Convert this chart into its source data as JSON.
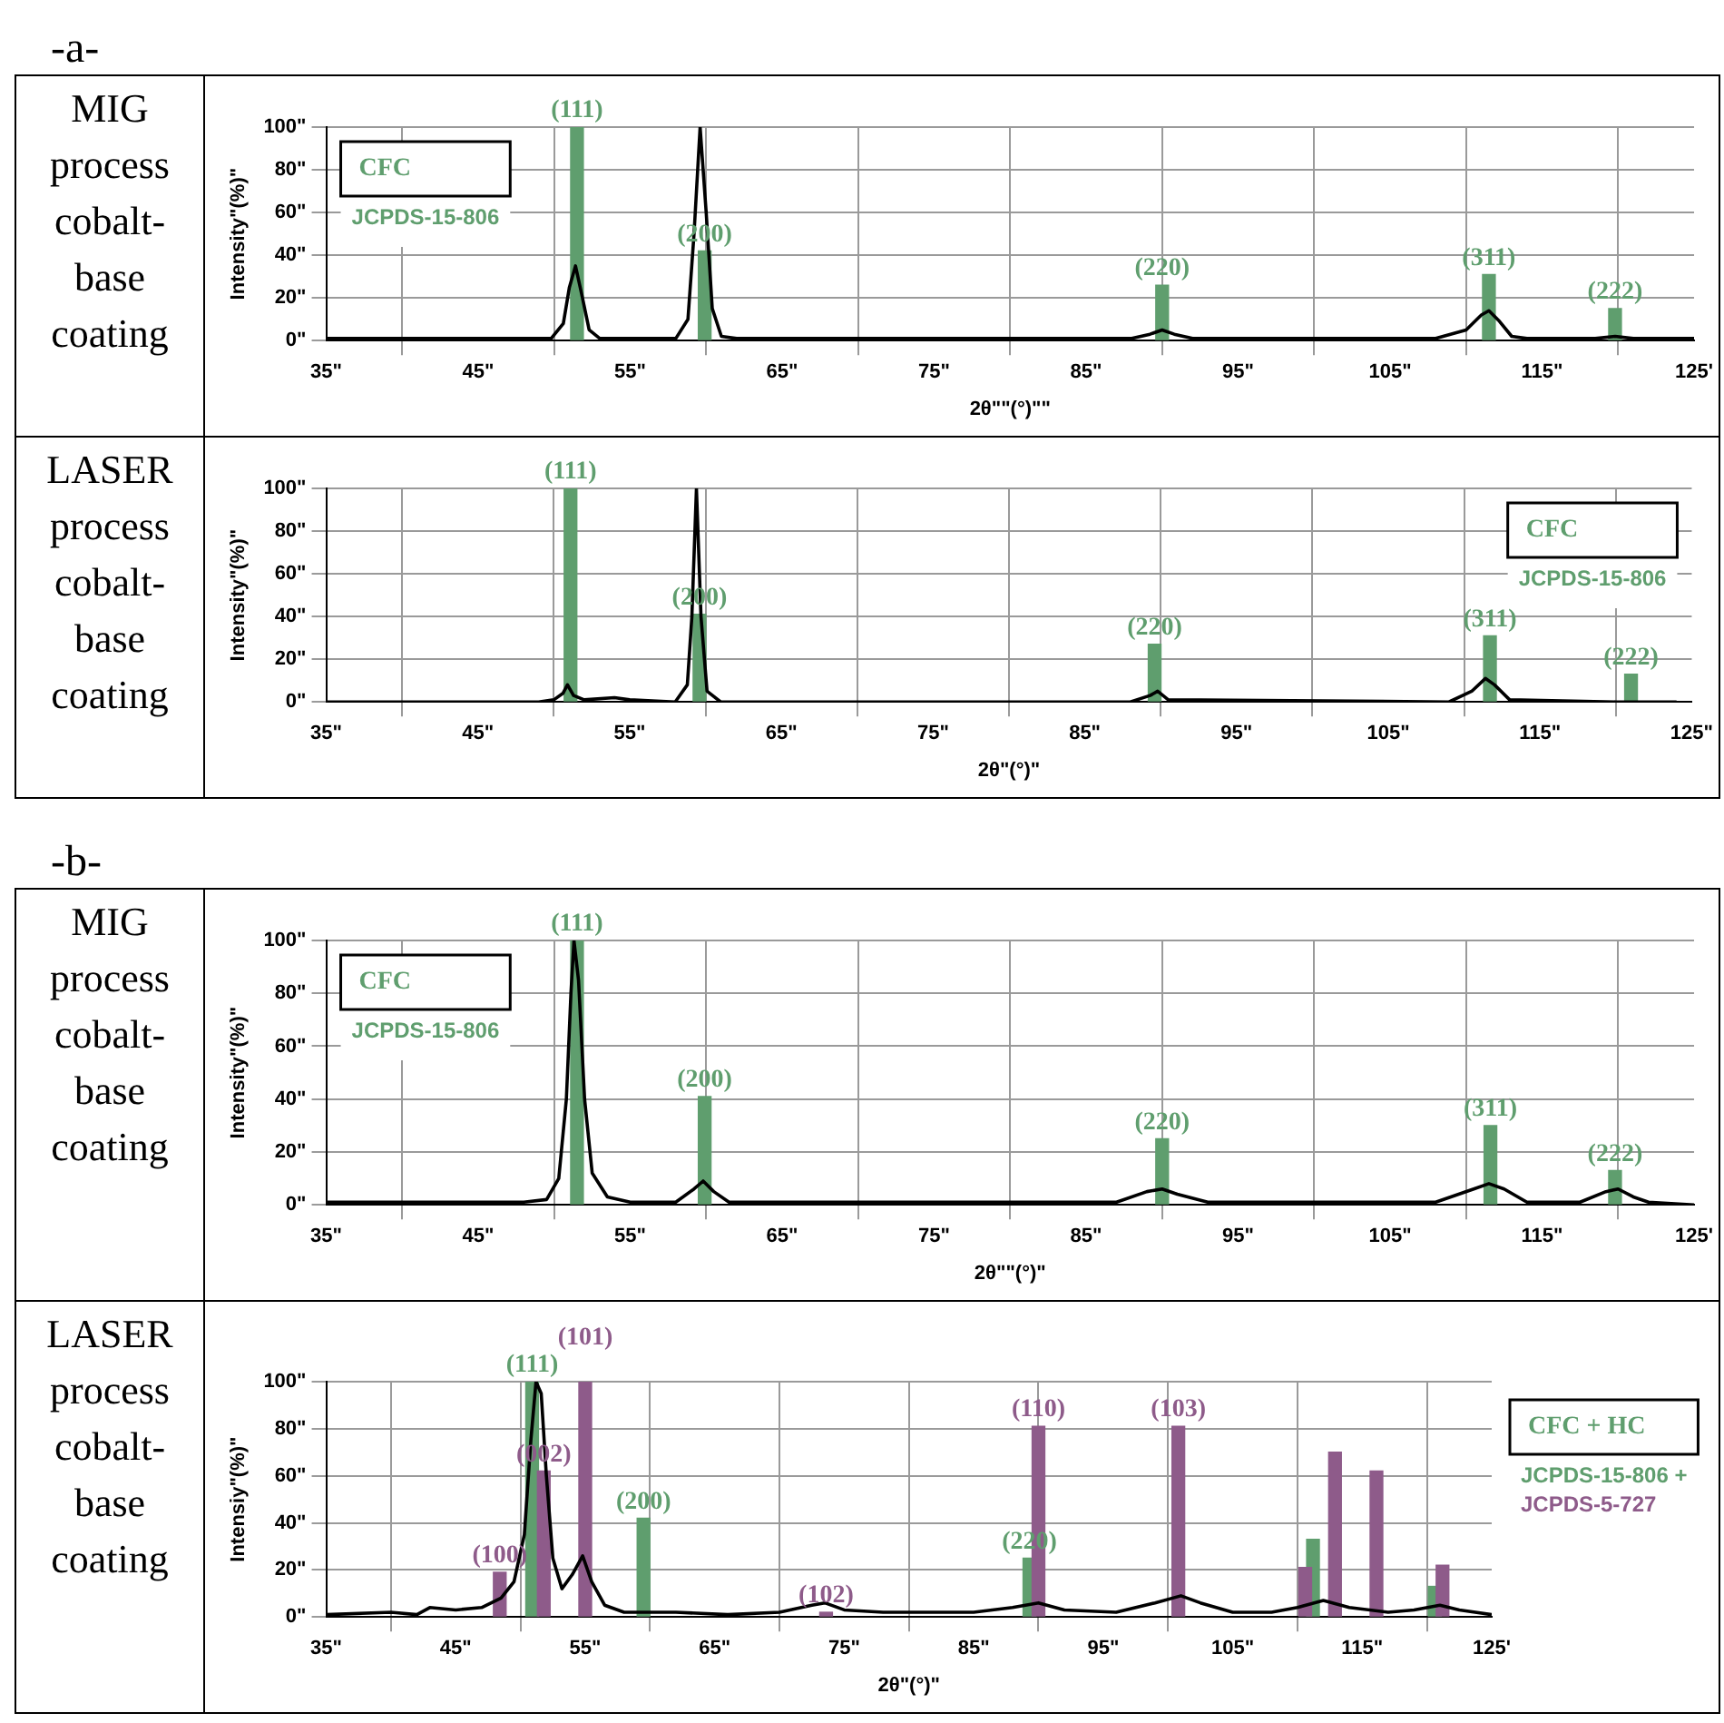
{
  "chart_data": [
    {
      "type": "line",
      "title": "MIG process cobalt-base coating",
      "xlabel": "2θ\"\"(°)\"\"",
      "ylabel": "Intensity\"(%)\"",
      "legend": "top left",
      "legend_title": "CFC",
      "grid": true,
      "xlim": [
        35,
        125
      ],
      "xticks": [
        {
          "value": 35,
          "label": "35\""
        },
        {
          "value": 45,
          "label": "45\""
        },
        {
          "value": 55,
          "label": "55\""
        },
        {
          "value": 65,
          "label": "65\""
        },
        {
          "value": 75,
          "label": "75\""
        },
        {
          "value": 85,
          "label": "85\""
        },
        {
          "value": 95,
          "label": "95\""
        },
        {
          "value": 105,
          "label": "105\""
        },
        {
          "value": 115,
          "label": "115\""
        },
        {
          "value": 125,
          "label": "125'"
        }
      ],
      "ylim": [
        0,
        100
      ],
      "yticks": [
        {
          "value": 0,
          "label": "0\""
        },
        {
          "value": 20,
          "label": "20\""
        },
        {
          "value": 40,
          "label": "40\""
        },
        {
          "value": 60,
          "label": "60\""
        },
        {
          "value": 80,
          "label": "80\""
        },
        {
          "value": 100,
          "label": "100\""
        }
      ],
      "annotations": [
        "-a-",
        {
          "text": "(111)",
          "x": 51.5,
          "y": 100
        },
        {
          "text": "(200)",
          "x": 59.9,
          "y": 42
        },
        {
          "text": "(220)",
          "x": 90.0,
          "y": 26
        },
        {
          "text": "(311)",
          "x": 111.5,
          "y": 31
        },
        {
          "text": "(222)",
          "x": 119.8,
          "y": 15
        }
      ],
      "series": [
        {
          "type": "bar",
          "name": "JCPDS-15-806",
          "color": "#5f9e6e",
          "x": [
            51.5,
            59.9,
            90.0,
            111.5,
            119.8
          ],
          "values": [
            100,
            42,
            26,
            31,
            15
          ]
        },
        {
          "color": "#000000",
          "x": [
            35,
            45,
            49.8,
            50.6,
            51.0,
            51.4,
            51.8,
            52.3,
            53,
            58,
            58.8,
            59.2,
            59.6,
            60.0,
            60.4,
            61,
            62,
            88,
            89.2,
            90,
            90.8,
            92,
            108,
            110,
            111,
            111.5,
            112.2,
            113,
            114,
            118.5,
            119.8,
            121,
            125
          ],
          "values": [
            1,
            1,
            1,
            8,
            25,
            35,
            22,
            5,
            1,
            1,
            10,
            50,
            100,
            60,
            15,
            2,
            1,
            1,
            3,
            5,
            3,
            1,
            1,
            5,
            12,
            14,
            9,
            2,
            1,
            1,
            2,
            1,
            1
          ]
        }
      ]
    },
    {
      "type": "line",
      "title": "LASER process cobalt-base coating",
      "xlabel": "2θ\"(°)\"",
      "ylabel": "Intensity\"(%)\"",
      "legend": "top right",
      "legend_title": "CFC",
      "grid": true,
      "xlim": [
        35,
        125
      ],
      "xticks": [
        {
          "value": 35,
          "label": "35\""
        },
        {
          "value": 45,
          "label": "45\""
        },
        {
          "value": 55,
          "label": "55\""
        },
        {
          "value": 65,
          "label": "65\""
        },
        {
          "value": 75,
          "label": "75\""
        },
        {
          "value": 85,
          "label": "85\""
        },
        {
          "value": 95,
          "label": "95\""
        },
        {
          "value": 105,
          "label": "105\""
        },
        {
          "value": 115,
          "label": "115\""
        },
        {
          "value": 125,
          "label": "125\""
        }
      ],
      "ylim": [
        0,
        100
      ],
      "yticks": [
        {
          "value": 0,
          "label": "0\""
        },
        {
          "value": 20,
          "label": "20\""
        },
        {
          "value": 40,
          "label": "40\""
        },
        {
          "value": 60,
          "label": "60\""
        },
        {
          "value": 80,
          "label": "80\""
        },
        {
          "value": 100,
          "label": "100\""
        }
      ],
      "annotations": [
        {
          "text": "(111)",
          "x": 51.1,
          "y": 100
        },
        {
          "text": "(200)",
          "x": 59.6,
          "y": 41
        },
        {
          "text": "(220)",
          "x": 89.6,
          "y": 27
        },
        {
          "text": "(311)",
          "x": 111.7,
          "y": 31
        },
        {
          "text": "(222)",
          "x": 121.0,
          "y": 13
        }
      ],
      "series": [
        {
          "type": "bar",
          "name": "JCPDS-15-806",
          "color": "#5f9e6e",
          "x": [
            51.1,
            59.6,
            89.6,
            111.7,
            121.0
          ],
          "values": [
            100,
            41,
            27,
            31,
            13
          ]
        },
        {
          "color": "#000000",
          "x": [
            35,
            49,
            50,
            50.6,
            50.9,
            51.3,
            52,
            54,
            55,
            58,
            58.8,
            59.1,
            59.4,
            59.7,
            60.1,
            61,
            88,
            89.3,
            89.8,
            90.5,
            109,
            110.5,
            111.4,
            112.0,
            113,
            120,
            124
          ],
          "values": [
            0,
            0,
            1,
            4,
            8,
            3,
            1,
            2,
            1,
            0,
            8,
            40,
            100,
            40,
            5,
            0,
            0,
            3,
            5,
            1,
            0,
            5,
            11,
            8,
            1,
            0,
            0
          ]
        }
      ]
    },
    {
      "type": "line",
      "title": "MIG process cobalt-base coating",
      "xlabel": "2θ\"\"(°)\"",
      "ylabel": "Intensity\"(%)\"",
      "legend": "top left",
      "legend_title": "CFC",
      "grid": true,
      "xlim": [
        35,
        125
      ],
      "xticks": [
        {
          "value": 35,
          "label": "35\""
        },
        {
          "value": 45,
          "label": "45\""
        },
        {
          "value": 55,
          "label": "55\""
        },
        {
          "value": 65,
          "label": "65\""
        },
        {
          "value": 75,
          "label": "75\""
        },
        {
          "value": 85,
          "label": "85\""
        },
        {
          "value": 95,
          "label": "95\""
        },
        {
          "value": 105,
          "label": "105\""
        },
        {
          "value": 115,
          "label": "115\""
        },
        {
          "value": 125,
          "label": "125'"
        }
      ],
      "ylim": [
        0,
        100
      ],
      "yticks": [
        {
          "value": 0,
          "label": "0\""
        },
        {
          "value": 20,
          "label": "20\""
        },
        {
          "value": 40,
          "label": "40\""
        },
        {
          "value": 60,
          "label": "60\""
        },
        {
          "value": 80,
          "label": "80\""
        },
        {
          "value": 100,
          "label": "100\""
        }
      ],
      "annotations": [
        "-b-",
        {
          "text": "(111)",
          "x": 51.5,
          "y": 100
        },
        {
          "text": "(200)",
          "x": 59.9,
          "y": 41
        },
        {
          "text": "(220)",
          "x": 90.0,
          "y": 25
        },
        {
          "text": "(311)",
          "x": 111.6,
          "y": 30
        },
        {
          "text": "(222)",
          "x": 119.8,
          "y": 13
        }
      ],
      "series": [
        {
          "type": "bar",
          "name": "JCPDS-15-806",
          "color": "#5f9e6e",
          "x": [
            51.5,
            59.9,
            90.0,
            111.6,
            119.8
          ],
          "values": [
            100,
            41,
            25,
            30,
            13
          ]
        },
        {
          "color": "#000000",
          "x": [
            35,
            37,
            48,
            49.5,
            50.3,
            50.8,
            51.1,
            51.3,
            51.6,
            52.0,
            52.5,
            53.5,
            55,
            58,
            59.2,
            59.8,
            60.5,
            61.5,
            87,
            89,
            90,
            91,
            93,
            108,
            110.5,
            111.5,
            112.5,
            114,
            117.5,
            119.2,
            120,
            121,
            122,
            125
          ],
          "values": [
            1,
            1,
            1,
            2,
            10,
            40,
            80,
            100,
            85,
            40,
            12,
            3,
            1,
            1,
            6,
            9,
            5,
            1,
            1,
            5,
            6,
            4,
            1,
            1,
            6,
            8,
            6,
            1,
            1,
            5,
            6,
            3,
            1,
            0
          ]
        }
      ]
    },
    {
      "type": "line",
      "title": "LASER process cobalt-base coating",
      "xlabel": "2θ\"(°)\"",
      "ylabel": "Intensiy\"(%)\"",
      "legend": "right",
      "legend_title": "CFC + HC",
      "grid": true,
      "xlim": [
        35,
        125
      ],
      "xticks": [
        {
          "value": 35,
          "label": "35\""
        },
        {
          "value": 45,
          "label": "45\""
        },
        {
          "value": 55,
          "label": "55\""
        },
        {
          "value": 65,
          "label": "65\""
        },
        {
          "value": 75,
          "label": "75\""
        },
        {
          "value": 85,
          "label": "85\""
        },
        {
          "value": 95,
          "label": "95\""
        },
        {
          "value": 105,
          "label": "105\""
        },
        {
          "value": 115,
          "label": "115\""
        },
        {
          "value": 125,
          "label": "125'"
        }
      ],
      "ylim": [
        0,
        100
      ],
      "yticks": [
        {
          "value": 0,
          "label": "0\""
        },
        {
          "value": 20,
          "label": "20\""
        },
        {
          "value": 40,
          "label": "40\""
        },
        {
          "value": 60,
          "label": "60\""
        },
        {
          "value": 80,
          "label": "80\""
        },
        {
          "value": 100,
          "label": "100\""
        }
      ],
      "annotations": [
        {
          "text": "(100)",
          "x": 48.4,
          "y": 19
        },
        {
          "text": "(111)",
          "x": 50.9,
          "y": 100
        },
        {
          "text": "(002)",
          "x": 51.8,
          "y": 62
        },
        {
          "text": "(101)",
          "x": 55.0,
          "y": 100
        },
        {
          "text": "(200)",
          "x": 59.5,
          "y": 42
        },
        {
          "text": "(102)",
          "x": 73.6,
          "y": 2
        },
        {
          "text": "(220)",
          "x": 89.3,
          "y": 25
        },
        {
          "text": "(110)",
          "x": 90.0,
          "y": 81
        },
        {
          "text": "(103)",
          "x": 100.8,
          "y": 81
        }
      ],
      "series": [
        {
          "type": "bar",
          "name": "JCPDS-15-806 +",
          "color": "#5f9e6e",
          "x": [
            50.9,
            59.5,
            89.3,
            111.2,
            120.6
          ],
          "values": [
            100,
            42,
            25,
            33,
            13
          ]
        },
        {
          "type": "bar",
          "name": "JCPDS-5-727",
          "color": "#8e5b8a",
          "x": [
            48.4,
            51.8,
            55.0,
            73.6,
            90.0,
            100.8,
            110.6,
            112.9,
            116.1,
            121.2
          ],
          "values": [
            19,
            62,
            100,
            2,
            81,
            81,
            21,
            70,
            62,
            22
          ]
        },
        {
          "color": "#000000",
          "x": [
            35,
            40,
            42,
            43,
            45,
            47,
            48.5,
            49.5,
            50.3,
            50.8,
            51.2,
            51.6,
            52.0,
            52.5,
            53.2,
            54.0,
            54.8,
            55.5,
            56.5,
            58,
            62,
            66,
            70,
            72.5,
            73.5,
            75,
            78,
            85,
            88,
            90,
            92,
            96,
            99,
            101,
            102.5,
            105,
            108,
            110,
            112,
            114,
            117,
            119,
            121,
            122.5,
            125
          ],
          "values": [
            1,
            2,
            1,
            4,
            3,
            4,
            8,
            15,
            35,
            75,
            100,
            95,
            60,
            25,
            12,
            18,
            26,
            15,
            5,
            2,
            2,
            1,
            2,
            5,
            6,
            3,
            2,
            2,
            4,
            6,
            3,
            2,
            6,
            9,
            6,
            2,
            2,
            4,
            7,
            4,
            2,
            3,
            5,
            3,
            1
          ]
        }
      ]
    }
  ]
}
